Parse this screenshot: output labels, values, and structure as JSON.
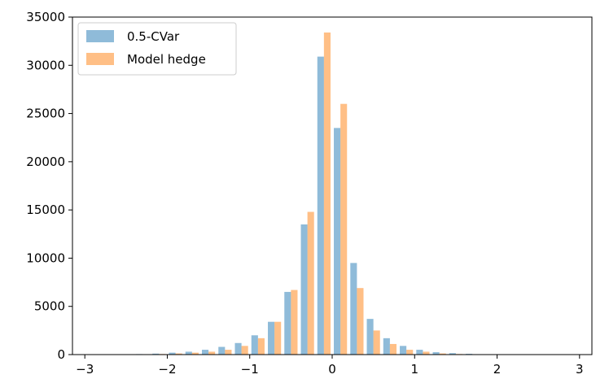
{
  "chart_data": {
    "type": "bar",
    "title": "",
    "xlabel": "",
    "ylabel": "",
    "xlim": [
      -3.15,
      3.15
    ],
    "ylim": [
      0,
      35000
    ],
    "xticks": [
      -3,
      -2,
      -1,
      0,
      1,
      2,
      3
    ],
    "xtick_labels": [
      "−3",
      "−2",
      "−1",
      "0",
      "1",
      "2",
      "3"
    ],
    "yticks": [
      0,
      5000,
      10000,
      15000,
      20000,
      25000,
      30000,
      35000
    ],
    "ytick_labels": [
      "0",
      "5000",
      "10000",
      "15000",
      "20000",
      "25000",
      "30000",
      "35000"
    ],
    "grid": false,
    "legend_position": "top-left",
    "bin_edges": [
      -3.0,
      -2.8,
      -2.6,
      -2.4,
      -2.2,
      -2.0,
      -1.8,
      -1.6,
      -1.4,
      -1.2,
      -1.0,
      -0.8,
      -0.6,
      -0.4,
      -0.2,
      0.0,
      0.2,
      0.4,
      0.6,
      0.8,
      1.0,
      1.2,
      1.4,
      1.6,
      1.8,
      2.0,
      2.2,
      2.4,
      2.6,
      2.8,
      3.0
    ],
    "series": [
      {
        "name": "0.5-CVar",
        "color": "#1f77b4",
        "opacity": 0.5,
        "values": [
          0,
          0,
          20,
          50,
          100,
          200,
          300,
          500,
          800,
          1200,
          2000,
          3400,
          6500,
          13500,
          30900,
          23500,
          9500,
          3700,
          1700,
          900,
          500,
          250,
          150,
          80,
          40,
          20,
          10,
          5,
          0,
          0
        ]
      },
      {
        "name": "Model hedge",
        "color": "#ff7f0e",
        "opacity": 0.5,
        "values": [
          0,
          0,
          10,
          30,
          60,
          120,
          200,
          300,
          500,
          900,
          1700,
          3400,
          6700,
          14800,
          33400,
          26000,
          6900,
          2500,
          1100,
          500,
          300,
          120,
          60,
          30,
          15,
          8,
          4,
          2,
          0,
          0
        ]
      }
    ]
  }
}
